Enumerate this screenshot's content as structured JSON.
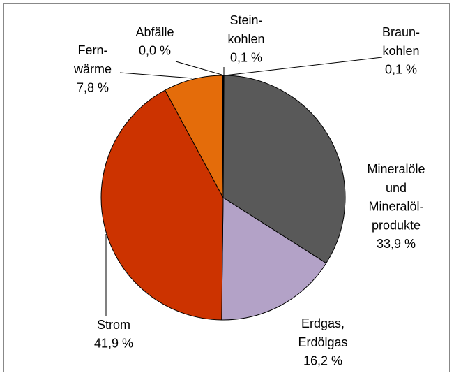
{
  "chart_data": {
    "type": "pie",
    "categories": [
      "Braun-\nkohlen",
      "Mineralöle\nund\nMineralöl-\nprodukte",
      "Erdgas,\nErdölgas",
      "Strom",
      "Fern-\nwärme",
      "Abfälle",
      "Stein-\nkohlen"
    ],
    "values": [
      0.1,
      33.9,
      16.2,
      41.9,
      7.8,
      0.0,
      0.1
    ],
    "value_labels": [
      "0,1 %",
      "33,9 %",
      "16,2 %",
      "41,9 %",
      "7,8 %",
      "0,0 %",
      "0,1 %"
    ],
    "colors": [
      "#1a1a1a",
      "#595959",
      "#b3a2c7",
      "#cc3300",
      "#e46c0a",
      "#7f7f7f",
      "#0d0d0d"
    ]
  }
}
